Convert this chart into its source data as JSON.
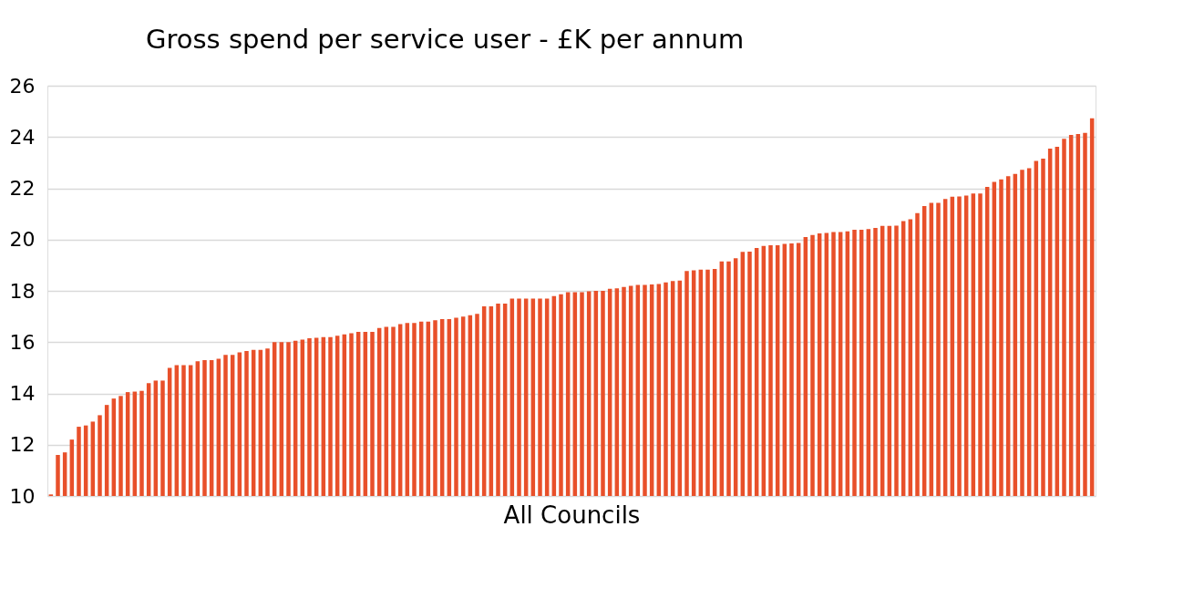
{
  "chart_data": {
    "type": "bar",
    "title": "Gross spend per service user - £K per annum",
    "xlabel": "All Councils",
    "categories": [
      null,
      null,
      null,
      null,
      null,
      null,
      null,
      null,
      null,
      null,
      null,
      null,
      null,
      null,
      null,
      null,
      null,
      null,
      null,
      null,
      null,
      null,
      null,
      null,
      null,
      null,
      null,
      null,
      null,
      null,
      null,
      null,
      null,
      null,
      null,
      null,
      null,
      null,
      null,
      null,
      null,
      null,
      null,
      null,
      null,
      null,
      null,
      null,
      null,
      null,
      null,
      null,
      null,
      null,
      null,
      null,
      null,
      null,
      null,
      null,
      null,
      null,
      null,
      null,
      null,
      null,
      null,
      null,
      null,
      null,
      null,
      null,
      null,
      null,
      null,
      null,
      null,
      null,
      null,
      null,
      null,
      null,
      null,
      null,
      null,
      null,
      null,
      null,
      null,
      null,
      null,
      null,
      null,
      null,
      null,
      null,
      null,
      null,
      null,
      null,
      null,
      null,
      null,
      null,
      null,
      null,
      null,
      null,
      null,
      null,
      null,
      null,
      null,
      null,
      null,
      null,
      null,
      null,
      null,
      null,
      null,
      null,
      null,
      null,
      null,
      null,
      null,
      null,
      null,
      null,
      null,
      null,
      null,
      null,
      null,
      null,
      null,
      null,
      null,
      null,
      null,
      null,
      null,
      null,
      null,
      null,
      null,
      null,
      null,
      null
    ],
    "values": [
      10.06,
      11.6,
      11.7,
      12.2,
      12.7,
      12.75,
      12.9,
      13.15,
      13.55,
      13.8,
      13.9,
      14.05,
      14.07,
      14.1,
      14.4,
      14.5,
      14.5,
      15.0,
      15.1,
      15.1,
      15.1,
      15.25,
      15.3,
      15.3,
      15.35,
      15.5,
      15.5,
      15.6,
      15.65,
      15.7,
      15.7,
      15.75,
      16.0,
      16.0,
      16.0,
      16.05,
      16.1,
      16.15,
      16.17,
      16.2,
      16.2,
      16.25,
      16.3,
      16.35,
      16.4,
      16.4,
      16.4,
      16.55,
      16.6,
      16.6,
      16.7,
      16.75,
      16.75,
      16.8,
      16.8,
      16.85,
      16.9,
      16.9,
      16.95,
      17.0,
      17.05,
      17.1,
      17.4,
      17.4,
      17.5,
      17.5,
      17.7,
      17.7,
      17.7,
      17.7,
      17.7,
      17.7,
      17.8,
      17.87,
      17.95,
      17.95,
      17.95,
      17.98,
      18.0,
      18.0,
      18.08,
      18.1,
      18.15,
      18.2,
      18.23,
      18.23,
      18.25,
      18.27,
      18.33,
      18.38,
      18.4,
      18.77,
      18.8,
      18.83,
      18.83,
      18.85,
      19.15,
      19.15,
      19.27,
      19.52,
      19.53,
      19.67,
      19.75,
      19.78,
      19.78,
      19.83,
      19.85,
      19.87,
      20.1,
      20.18,
      20.24,
      20.26,
      20.29,
      20.29,
      20.32,
      20.38,
      20.38,
      20.41,
      20.45,
      20.53,
      20.53,
      20.54,
      20.72,
      20.79,
      21.03,
      21.31,
      21.43,
      21.43,
      21.58,
      21.67,
      21.68,
      21.72,
      21.8,
      21.8,
      22.05,
      22.25,
      22.35,
      22.47,
      22.56,
      22.72,
      22.78,
      23.07,
      23.16,
      23.55,
      23.62,
      23.93,
      24.08,
      24.12,
      24.16,
      24.73
    ],
    "color": "#e8502a",
    "ylim": [
      10,
      26
    ],
    "yticks": [
      10,
      12,
      14,
      16,
      18,
      20,
      22,
      24,
      26
    ],
    "grid": "y",
    "tick_labels": "y"
  }
}
